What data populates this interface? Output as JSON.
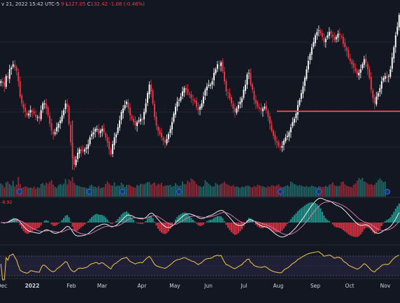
{
  "header": {
    "date_text": "v 21, 2022 15:42 UTC-5",
    "fragment": "9",
    "low_label": "L",
    "low_value": "127.05",
    "close_label": "C",
    "close_value": "132.42",
    "change": "-1.08 (-0.46%)"
  },
  "macd_label": "-8.92",
  "x_axis": [
    {
      "label": "Dec",
      "bold": false
    },
    {
      "label": "2022",
      "bold": true
    },
    {
      "label": "Feb",
      "bold": false
    },
    {
      "label": "Mar",
      "bold": false
    },
    {
      "label": "Apr",
      "bold": false
    },
    {
      "label": "May",
      "bold": false
    },
    {
      "label": "Jun",
      "bold": false
    },
    {
      "label": "Jul",
      "bold": false
    },
    {
      "label": "Aug",
      "bold": false
    },
    {
      "label": "Sep",
      "bold": false
    },
    {
      "label": "Oct",
      "bold": false
    },
    {
      "label": "Nov",
      "bold": false
    }
  ],
  "colors": {
    "background": "#131722",
    "up": "#26a69a",
    "down": "#f23645",
    "support_line": "#f23645",
    "rsi": "#f2c94c",
    "macd_line": "#ffffff",
    "signal_line": "#e080b0"
  },
  "chart_data": {
    "type": "candlestick",
    "closes": [
      173,
      172,
      170,
      176,
      175,
      180,
      181,
      183,
      181,
      179,
      173,
      164,
      160,
      157,
      155,
      153,
      154,
      156,
      155,
      154,
      152,
      152,
      151,
      156,
      160,
      160,
      157,
      153,
      148,
      144,
      142,
      143,
      146,
      148,
      150,
      153,
      156,
      160,
      158,
      148,
      137,
      128,
      124,
      127,
      131,
      133,
      132,
      132,
      133,
      134,
      136,
      140,
      142,
      143,
      145,
      145,
      142,
      144,
      145,
      143,
      140,
      137,
      133,
      130,
      136,
      140,
      142,
      146,
      150,
      155,
      157,
      159,
      161,
      157,
      153,
      151,
      149,
      147,
      149,
      150,
      151,
      150,
      155,
      160,
      166,
      171,
      167,
      160,
      152,
      147,
      144,
      142,
      140,
      138,
      137,
      139,
      142,
      145,
      149,
      154,
      158,
      161,
      162,
      164,
      167,
      169,
      168,
      166,
      165,
      163,
      162,
      161,
      158,
      156,
      158,
      160,
      164,
      168,
      170,
      171,
      171,
      173,
      178,
      180,
      183,
      182,
      184,
      179,
      173,
      167,
      166,
      163,
      160,
      157,
      155,
      157,
      159,
      161,
      163,
      168,
      171,
      177,
      178,
      171,
      168,
      162,
      160,
      158,
      157,
      156,
      157,
      158,
      156,
      152,
      148,
      144,
      141,
      138,
      137,
      135,
      134,
      135,
      138,
      140,
      141,
      143,
      146,
      149,
      151,
      154,
      159,
      162,
      166,
      170,
      175,
      180,
      185,
      189,
      193,
      196,
      200,
      202,
      203,
      201,
      199,
      196,
      198,
      200,
      202,
      201,
      199,
      197,
      199,
      201,
      200,
      199,
      195,
      193,
      191,
      187,
      185,
      183,
      181,
      179,
      177,
      178,
      180,
      183,
      186,
      184,
      180,
      175,
      168,
      163,
      160,
      164,
      166,
      169,
      173,
      175,
      176,
      175,
      176,
      180,
      187,
      193,
      200,
      205,
      212
    ],
    "volumes": [
      0.42,
      0.38,
      0.3,
      0.45,
      0.48,
      0.4,
      0.35,
      0.5,
      0.33,
      0.38,
      0.62,
      0.4,
      0.28,
      0.3,
      0.33,
      0.31,
      0.28,
      0.29,
      0.27,
      0.32,
      0.25,
      0.3,
      0.28,
      0.4,
      0.43,
      0.36,
      0.45,
      0.41,
      0.47,
      0.52,
      0.38,
      0.31,
      0.28,
      0.36,
      0.4,
      0.37,
      0.41,
      0.56,
      0.39,
      0.55,
      0.5,
      0.62,
      0.44,
      0.37,
      0.35,
      0.33,
      0.31,
      0.3,
      0.29,
      0.27,
      0.26,
      0.35,
      0.38,
      0.32,
      0.31,
      0.29,
      0.34,
      0.27,
      0.29,
      0.3,
      0.4,
      0.48,
      0.42,
      0.36,
      0.35,
      0.45,
      0.33,
      0.36,
      0.34,
      0.44,
      0.39,
      0.31,
      0.37,
      0.38,
      0.36,
      0.33,
      0.3,
      0.29,
      0.37,
      0.35,
      0.41,
      0.4,
      0.39,
      0.43,
      0.47,
      0.46,
      0.38,
      0.42,
      0.45,
      0.36,
      0.41,
      0.39,
      0.44,
      0.33,
      0.35,
      0.36,
      0.35,
      0.38,
      0.32,
      0.34,
      0.43,
      0.37,
      0.33,
      0.36,
      0.48,
      0.4,
      0.39,
      0.51,
      0.45,
      0.58,
      0.54,
      0.49,
      0.4,
      0.35,
      0.33,
      0.3,
      0.34,
      0.52,
      0.46,
      0.41,
      0.36,
      0.32,
      0.33,
      0.44,
      0.39,
      0.37,
      0.4,
      0.43,
      0.48,
      0.41,
      0.38,
      0.35,
      0.33,
      0.37,
      0.31,
      0.33,
      0.3,
      0.28,
      0.32,
      0.3,
      0.33,
      0.35,
      0.34,
      0.31,
      0.29,
      0.34,
      0.31,
      0.38,
      0.36,
      0.34,
      0.33,
      0.31,
      0.29,
      0.33,
      0.31,
      0.36,
      0.35,
      0.33,
      0.36,
      0.39,
      0.32,
      0.3,
      0.31,
      0.34,
      0.36,
      0.33,
      0.48,
      0.45,
      0.4,
      0.38,
      0.34,
      0.37,
      0.35,
      0.33,
      0.31,
      0.34,
      0.3,
      0.32,
      0.35,
      0.33,
      0.31,
      0.29,
      0.33,
      0.32,
      0.3,
      0.31,
      0.34,
      0.31,
      0.37,
      0.4,
      0.45,
      0.36,
      0.34,
      0.33,
      0.35,
      0.46,
      0.48,
      0.39,
      0.35,
      0.33,
      0.31,
      0.3,
      0.38,
      0.42,
      0.51,
      0.59,
      0.55,
      0.6,
      0.48,
      0.46,
      0.42,
      0.38,
      0.4,
      0.36,
      0.38,
      0.45,
      0.52,
      0.58,
      0.52,
      0.46,
      0.48
    ]
  }
}
